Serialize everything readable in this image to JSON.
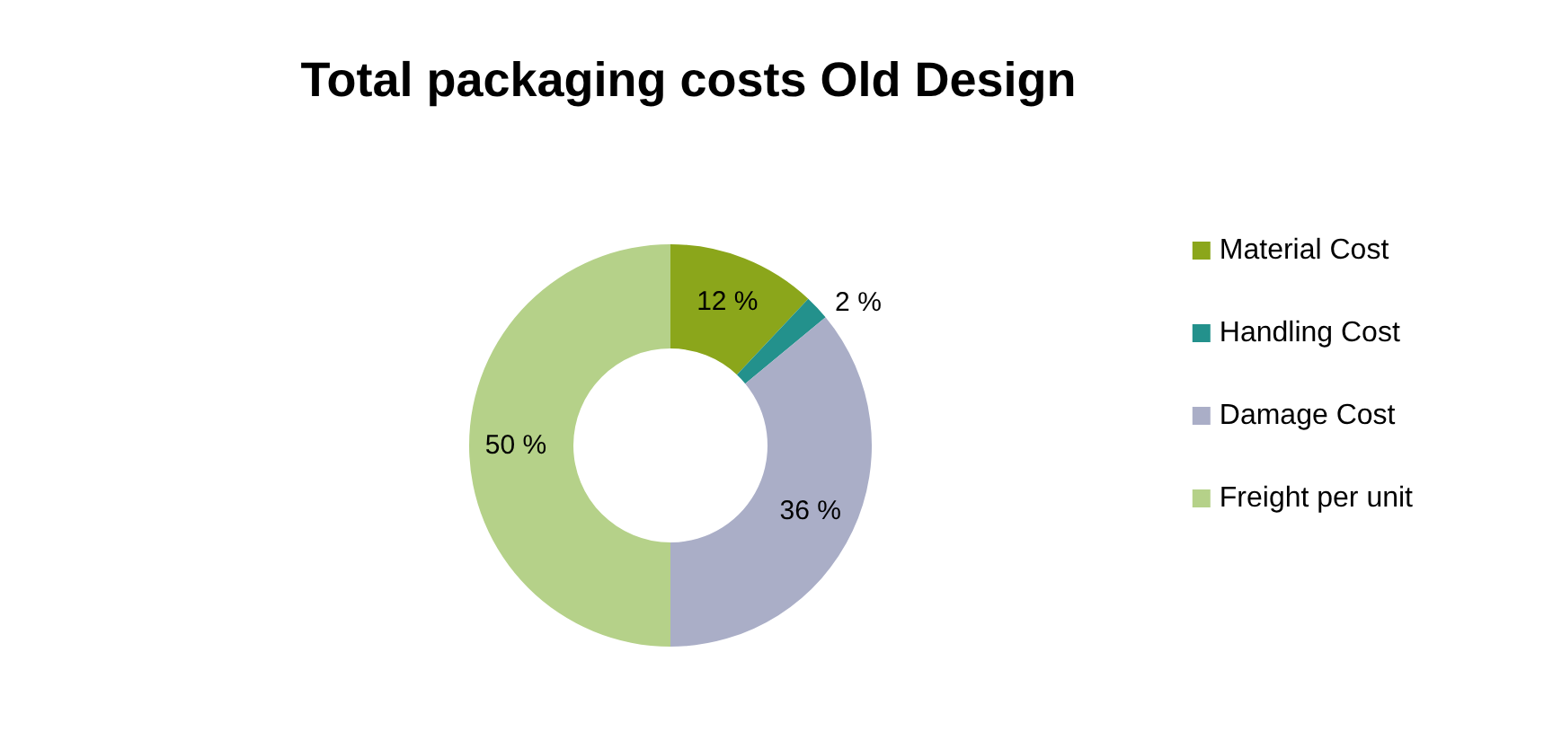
{
  "chart_data": {
    "type": "donut",
    "title": "Total packaging costs Old Design",
    "categories": [
      "Material Cost",
      "Handling Cost",
      "Damage Cost",
      "Freight per unit"
    ],
    "values": [
      12,
      2,
      36,
      50
    ],
    "colors": [
      "#8ba61b",
      "#23918c",
      "#aaaec7",
      "#b5d189"
    ],
    "value_labels": [
      "12 %",
      "2 %",
      "36 %",
      "50 %"
    ],
    "legend": "right"
  }
}
